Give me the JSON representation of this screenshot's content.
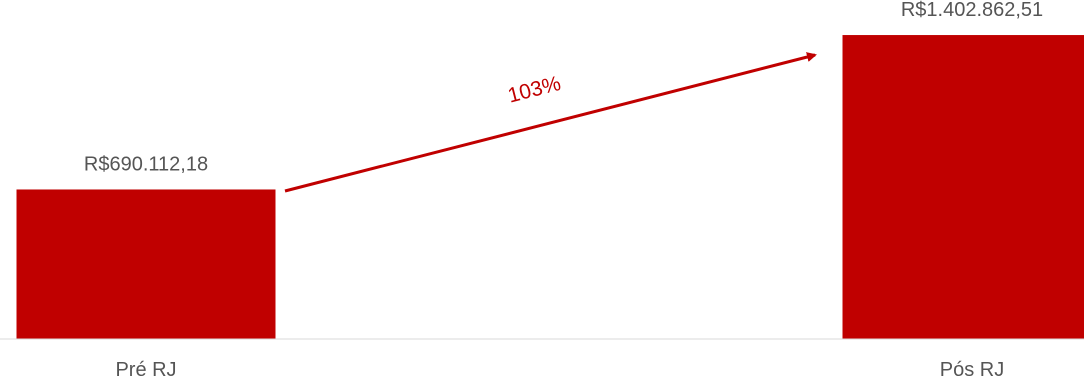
{
  "chart_data": {
    "type": "bar",
    "categories": [
      "Pré RJ",
      "Pós RJ"
    ],
    "values": [
      690112.18,
      1402862.51
    ],
    "value_labels": [
      "R$690.112,18",
      "R$1.402.862,51"
    ],
    "title": "",
    "xlabel": "",
    "ylabel": "",
    "ylim": [
      0,
      1500000
    ],
    "grid": false,
    "legend": "none",
    "bar_color": "#c00000",
    "axis_color": "#d9d9d9",
    "annotation": {
      "text": "103%",
      "color": "#c00000",
      "arrow": "from Pré RJ to Pós RJ"
    }
  }
}
